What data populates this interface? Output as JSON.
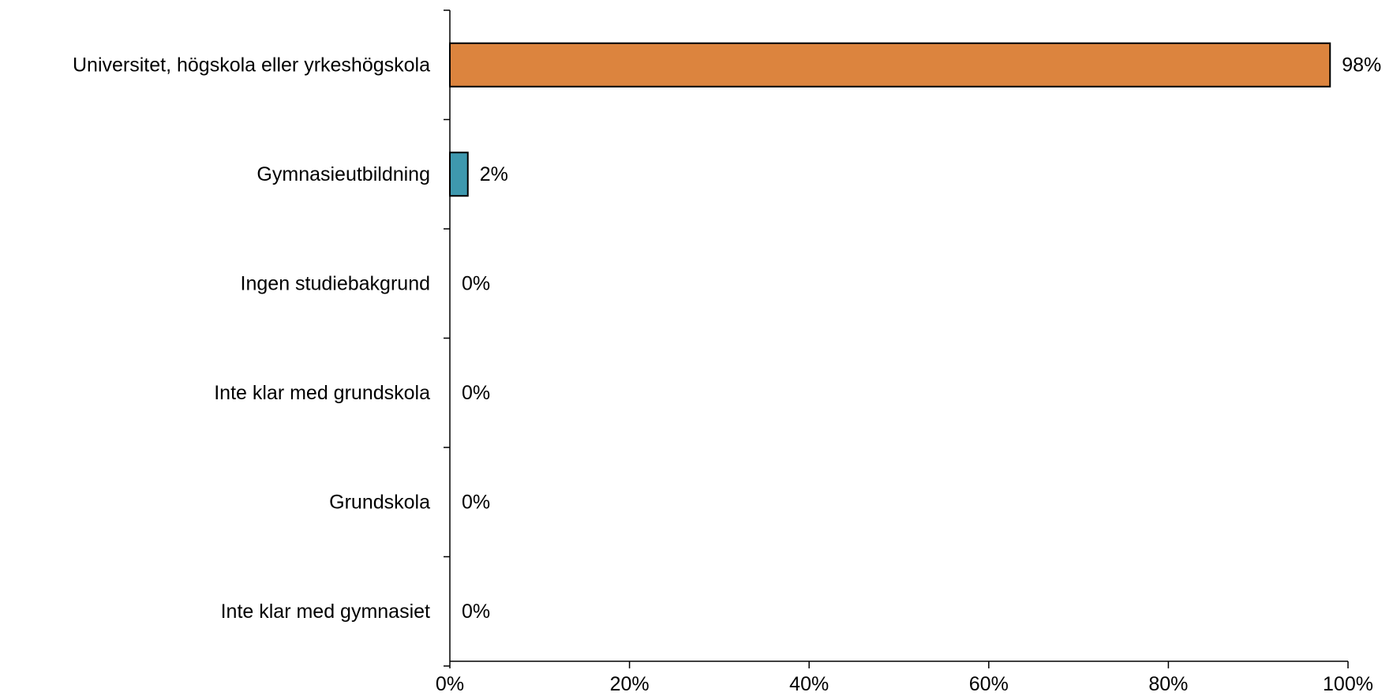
{
  "chart_data": {
    "type": "bar",
    "orientation": "horizontal",
    "categories": [
      "Universitet, högskola eller yrkeshögskola",
      "Gymnasieutbildning",
      "Ingen studiebakgrund",
      "Inte klar med grundskola",
      "Grundskola",
      "Inte klar med gymnasiet"
    ],
    "values": [
      98,
      2,
      0,
      0,
      0,
      0
    ],
    "data_labels": [
      "98%",
      "2%",
      "0%",
      "0%",
      "0%",
      "0%"
    ],
    "bar_colors": [
      "#DC843E",
      "#3E98AE",
      "#3E98AE",
      "#3E98AE",
      "#3E98AE",
      "#3E98AE"
    ],
    "xlim": [
      0,
      100
    ],
    "x_ticks": [
      0,
      20,
      40,
      60,
      80,
      100
    ],
    "x_tick_labels": [
      "0%",
      "20%",
      "40%",
      "60%",
      "80%",
      "100%"
    ],
    "grid": false,
    "legend": "none"
  }
}
